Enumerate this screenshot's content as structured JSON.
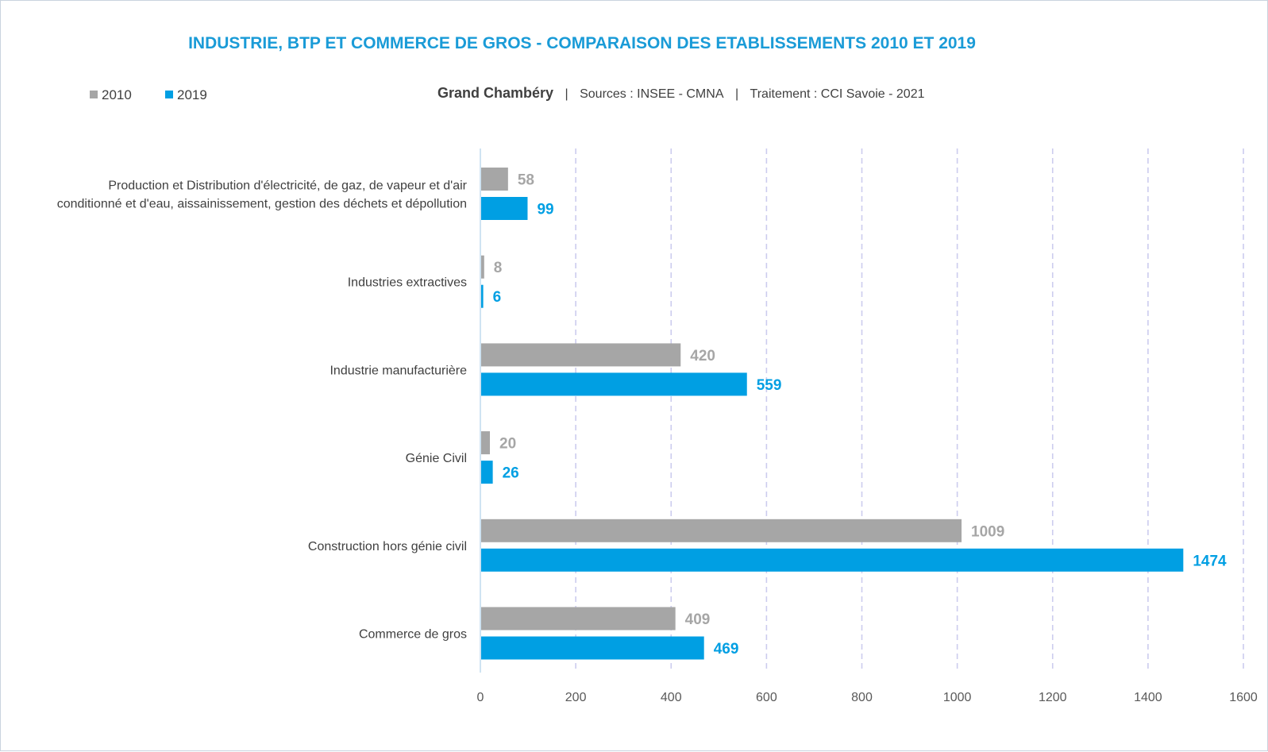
{
  "chart_data": {
    "type": "bar",
    "orientation": "horizontal",
    "title": "INDUSTRIE, BTP ET COMMERCE DE GROS - COMPARAISON DES ETABLISSEMENTS 2010 ET 2019",
    "subtitle": {
      "territory": "Grand Chambéry",
      "sep1": "|",
      "sources": "Sources : INSEE - CMNA",
      "sep2": "|",
      "treatment": "Traitement : CCI Savoie - 2021"
    },
    "categories": [
      [
        "Production et Distribution d'électricité, de gaz, de vapeur et d'air",
        "conditionné et d'eau, aissainissement, gestion des déchets et dépollution"
      ],
      [
        "Industries extractives"
      ],
      [
        "Industrie manufacturière"
      ],
      [
        "Génie Civil"
      ],
      [
        "Construction hors génie civil"
      ],
      [
        "Commerce de gros"
      ]
    ],
    "series": [
      {
        "name": "2010",
        "color": "#a6a6a6",
        "label_color": "#a6a6a6",
        "values": [
          58,
          8,
          420,
          20,
          1009,
          409
        ]
      },
      {
        "name": "2019",
        "color": "#009fe3",
        "label_color": "#009fe3",
        "values": [
          99,
          6,
          559,
          26,
          1474,
          469
        ]
      }
    ],
    "xlim": [
      0,
      1600
    ],
    "xticks": [
      0,
      200,
      400,
      600,
      800,
      1000,
      1200,
      1400,
      1600
    ],
    "grid": "vertical-dashed",
    "legend_position": "top-left",
    "title_color": "#1a9bd7",
    "axis_color": "#cfe3f2",
    "grid_color": "#ccccee"
  }
}
